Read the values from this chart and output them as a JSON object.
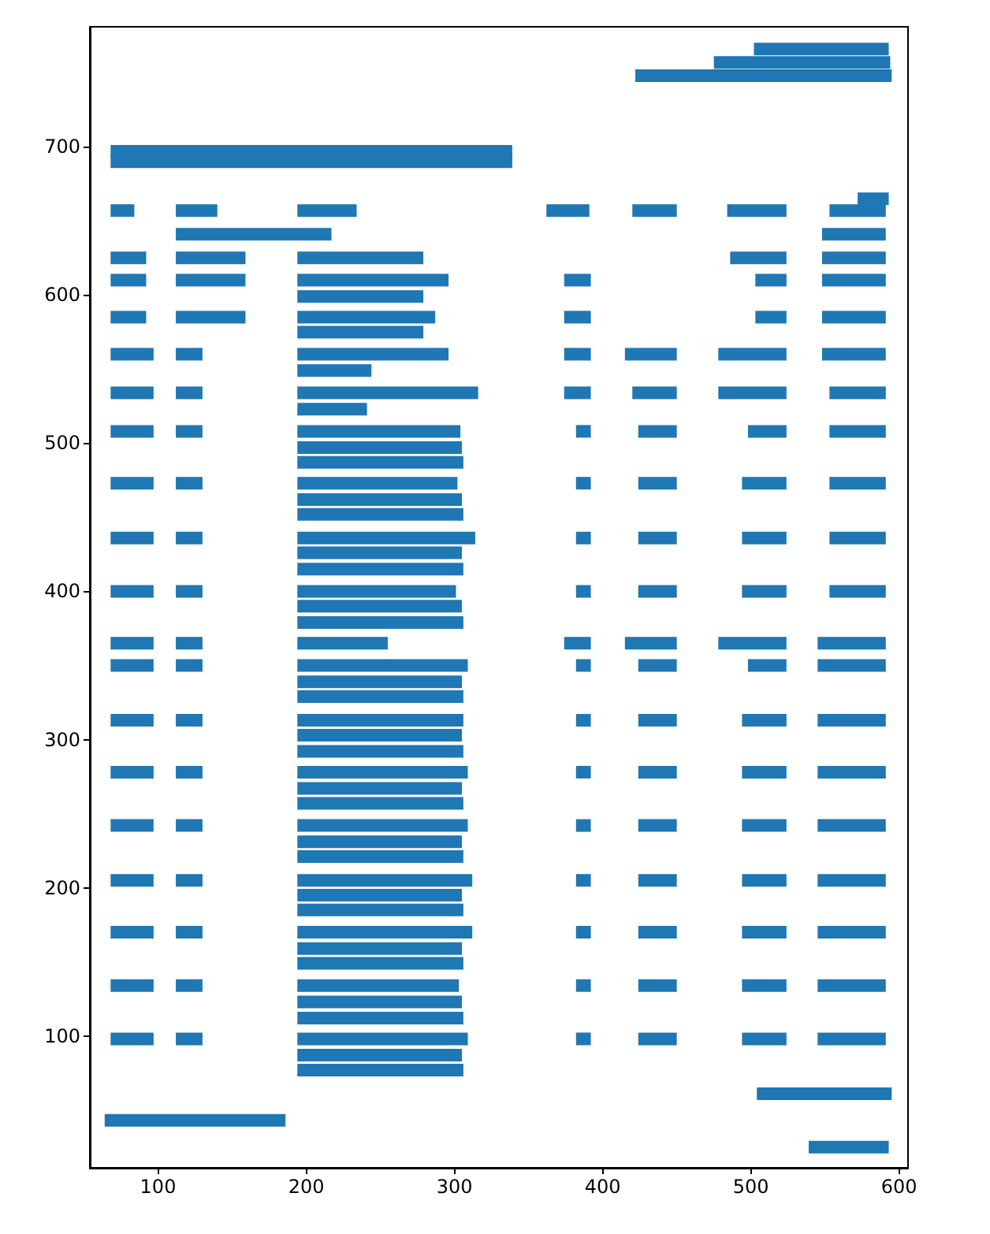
{
  "chart_data": {
    "type": "bar",
    "orientation": "horizontal",
    "color": "#1f77b4",
    "series": [
      {
        "x": [
          766,
          757,
          748,
          697,
          690,
          665,
          657,
          641,
          625,
          610,
          599,
          585,
          575,
          560,
          549,
          534,
          523,
          508,
          497,
          487,
          473,
          462,
          452,
          436,
          426,
          415,
          400,
          390,
          379,
          365,
          350,
          339,
          329,
          313,
          303,
          292,
          278,
          267,
          257,
          242,
          231,
          221,
          205,
          195,
          185,
          170,
          159,
          149,
          134,
          123,
          112,
          98,
          87,
          77,
          61,
          43,
          25
        ],
        "base": [
          502,
          475,
          422,
          68,
          68,
          572,
          68,
          112,
          68,
          68,
          194,
          68,
          194,
          68,
          194,
          68,
          194,
          68,
          194,
          194,
          68,
          194,
          194,
          68,
          194,
          194,
          68,
          194,
          194,
          68,
          68,
          194,
          194,
          68,
          194,
          194,
          68,
          194,
          194,
          68,
          194,
          194,
          68,
          194,
          194,
          68,
          194,
          194,
          68,
          194,
          194,
          68,
          194,
          194,
          504,
          64,
          539
        ],
        "values": [
          91,
          119,
          173,
          271,
          271,
          21,
          16,
          105,
          24,
          24,
          85,
          24,
          85,
          29,
          50,
          29,
          47,
          29,
          111,
          112,
          29,
          111,
          112,
          29,
          111,
          112,
          29,
          111,
          112,
          29,
          29,
          111,
          112,
          29,
          111,
          112,
          29,
          111,
          112,
          29,
          111,
          112,
          29,
          111,
          112,
          29,
          111,
          112,
          29,
          111,
          112,
          29,
          111,
          112,
          91,
          122,
          54
        ]
      },
      {
        "x": [
          657,
          641,
          625,
          610,
          585,
          560,
          534,
          508,
          473,
          436,
          400,
          365,
          350,
          313,
          278,
          242,
          205,
          170,
          134,
          98
        ],
        "base": [
          112,
          548,
          112,
          112,
          112,
          112,
          112,
          112,
          112,
          112,
          112,
          112,
          112,
          112,
          112,
          112,
          112,
          112,
          112,
          112
        ],
        "values": [
          28,
          43,
          47,
          47,
          47,
          18,
          18,
          18,
          18,
          18,
          18,
          18,
          18,
          18,
          18,
          18,
          18,
          18,
          18,
          18
        ]
      },
      {
        "x": [
          657,
          625,
          610,
          585,
          560,
          534,
          508,
          473,
          436,
          400,
          365,
          350,
          313,
          278,
          242,
          205,
          170,
          134,
          98
        ],
        "base": [
          194,
          194,
          194,
          194,
          194,
          194,
          194,
          194,
          194,
          194,
          194,
          194,
          194,
          194,
          194,
          194,
          194,
          194,
          194
        ],
        "values": [
          40,
          85,
          102,
          93,
          102,
          122,
          110,
          108,
          120,
          107,
          61,
          115,
          112,
          115,
          115,
          118,
          118,
          109,
          115
        ]
      },
      {
        "x": [
          657,
          625,
          610,
          585,
          560,
          534,
          508,
          473,
          436,
          400,
          365,
          350,
          313,
          278,
          242,
          205,
          170,
          134,
          98
        ],
        "base": [
          362,
          486,
          374,
          374,
          374,
          374,
          382,
          382,
          382,
          382,
          374,
          382,
          382,
          382,
          382,
          382,
          382,
          382,
          382
        ],
        "values": [
          29,
          38,
          18,
          18,
          18,
          18,
          10,
          10,
          10,
          10,
          18,
          10,
          10,
          10,
          10,
          10,
          10,
          10,
          10
        ]
      },
      {
        "x": [
          657,
          625,
          610,
          585,
          560,
          534,
          508,
          473,
          436,
          400,
          365,
          350,
          313,
          278,
          242,
          205,
          170,
          134,
          98
        ],
        "base": [
          420,
          548,
          503,
          503,
          415,
          420,
          424,
          424,
          424,
          424,
          415,
          424,
          424,
          424,
          424,
          424,
          424,
          424,
          424
        ],
        "values": [
          30,
          43,
          21,
          21,
          35,
          30,
          26,
          26,
          26,
          26,
          35,
          26,
          26,
          26,
          26,
          26,
          26,
          26,
          26
        ]
      },
      {
        "x": [
          657,
          610,
          585,
          560,
          534,
          508,
          473,
          436,
          400,
          365,
          350,
          313,
          278,
          242,
          205,
          170,
          134,
          98
        ],
        "base": [
          484,
          548,
          548,
          478,
          478,
          498,
          494,
          494,
          494,
          478,
          498,
          494,
          494,
          494,
          494,
          494,
          494,
          494
        ],
        "values": [
          40,
          43,
          43,
          46,
          46,
          26,
          30,
          30,
          30,
          46,
          26,
          30,
          30,
          30,
          30,
          30,
          30,
          30
        ]
      },
      {
        "x": [
          657,
          560,
          534,
          508,
          473,
          436,
          400,
          365,
          350,
          313,
          278,
          242,
          205,
          170,
          134,
          98
        ],
        "base": [
          553,
          548,
          553,
          553,
          553,
          553,
          553,
          545,
          545,
          545,
          545,
          545,
          545,
          545,
          545,
          545
        ],
        "values": [
          38,
          43,
          38,
          38,
          38,
          38,
          38,
          46,
          46,
          46,
          46,
          46,
          46,
          46,
          46,
          46
        ]
      }
    ],
    "xlim": [
      54,
      606
    ],
    "ylim": [
      11,
      781
    ],
    "xticks": [
      100,
      200,
      300,
      400,
      500,
      600
    ],
    "yticks": [
      100,
      200,
      300,
      400,
      500,
      600,
      700
    ]
  }
}
